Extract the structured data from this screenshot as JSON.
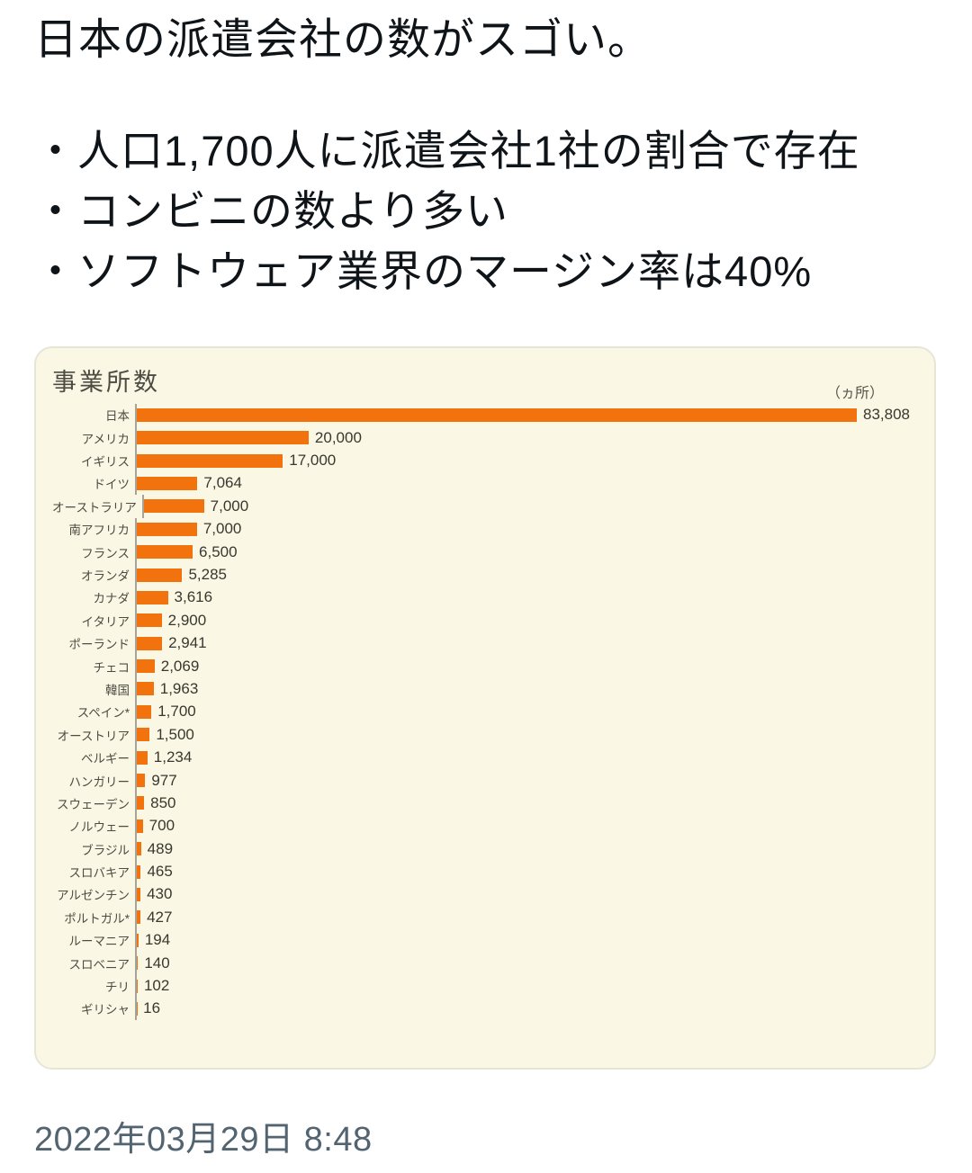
{
  "tweet": {
    "title": "日本の派遣会社の数がスゴい。",
    "bullets": [
      "・人口1,700人に派遣会社1社の割合で存在",
      "・コンビニの数より多い",
      "・ソフトウェア業界のマージン率は40%"
    ],
    "timestamp": "2022年03月29日 8:48"
  },
  "chart_data": {
    "type": "bar",
    "orientation": "horizontal",
    "title": "事業所数",
    "unit_label": "（ヵ所）",
    "categories": [
      "日本",
      "アメリカ",
      "イギリス",
      "ドイツ",
      "オーストラリア",
      "南アフリカ",
      "フランス",
      "オランダ",
      "カナダ",
      "イタリア",
      "ポーランド",
      "チェコ",
      "韓国",
      "スペイン*",
      "オーストリア",
      "ベルギー",
      "ハンガリー",
      "スウェーデン",
      "ノルウェー",
      "ブラジル",
      "スロバキア",
      "アルゼンチン",
      "ポルトガル*",
      "ルーマニア",
      "スロベニア",
      "チリ",
      "ギリシャ"
    ],
    "values": [
      83808,
      20000,
      17000,
      7064,
      7000,
      7000,
      6500,
      5285,
      3616,
      2900,
      2941,
      2069,
      1963,
      1700,
      1500,
      1234,
      977,
      850,
      700,
      489,
      465,
      430,
      427,
      194,
      140,
      102,
      16
    ],
    "value_labels": [
      "83,808",
      "20,000",
      "17,000",
      "7,064",
      "7,000",
      "7,000",
      "6,500",
      "5,285",
      "3,616",
      "2,900",
      "2,941",
      "2,069",
      "1,963",
      "1,700",
      "1,500",
      "1,234",
      "977",
      "850",
      "700",
      "489",
      "465",
      "430",
      "427",
      "194",
      "140",
      "102",
      "16"
    ],
    "xlim": [
      0,
      83808
    ],
    "grid": false,
    "legend": "none",
    "bar_color": "#f2720e",
    "card_background": "#faf8e4",
    "axis_color": "#a6a496"
  },
  "colors": {
    "tweet_text": "#0f1419",
    "timestamp_text": "#536471",
    "page_background": "#ffffff"
  }
}
